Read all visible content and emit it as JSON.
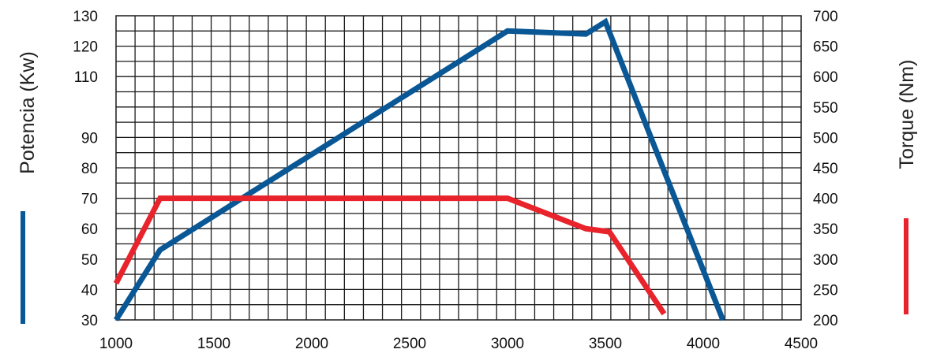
{
  "chart_data": {
    "type": "line",
    "title": "",
    "xlabel": "",
    "ylabel": "Potencia (Kw)",
    "y2label": "Torque (Nm)",
    "xlim": [
      1000,
      4500
    ],
    "ylim": [
      30,
      130
    ],
    "y2lim": [
      200,
      700
    ],
    "grid": true,
    "x_ticks": [
      1000,
      1500,
      2000,
      2500,
      3000,
      3500,
      4000,
      4500
    ],
    "y_ticks": [
      30,
      40,
      50,
      60,
      70,
      80,
      90,
      110,
      120,
      130
    ],
    "y2_ticks": [
      200,
      250,
      300,
      350,
      400,
      450,
      500,
      550,
      600,
      650,
      700
    ],
    "series": [
      {
        "axis": "left",
        "color": "#0a5796",
        "points": [
          [
            1000,
            30
          ],
          [
            1225,
            53
          ],
          [
            3000,
            125
          ],
          [
            3400,
            124
          ],
          [
            3500,
            128
          ],
          [
            4100,
            30
          ]
        ]
      },
      {
        "axis": "right",
        "color": "#e8232b",
        "points": [
          [
            1000,
            260
          ],
          [
            1225,
            400
          ],
          [
            3000,
            400
          ],
          [
            3400,
            350
          ],
          [
            3520,
            345
          ],
          [
            3800,
            210
          ]
        ]
      }
    ]
  }
}
